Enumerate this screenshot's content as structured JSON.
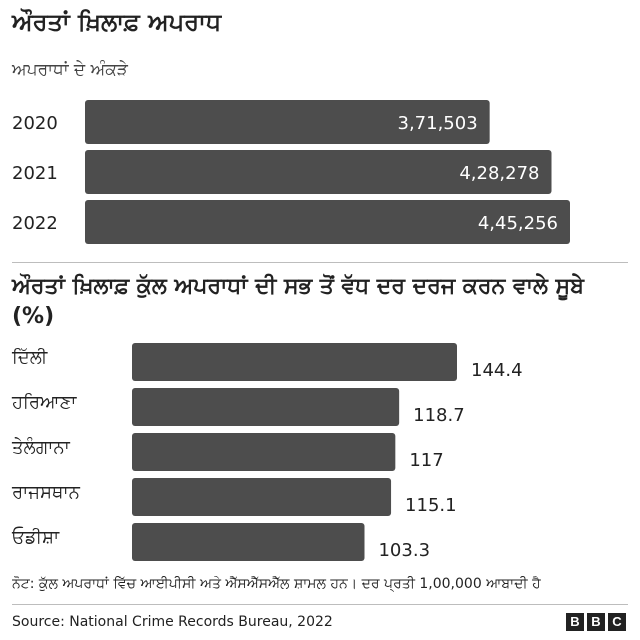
{
  "title": "ਔਰਤਾਂ ਖ਼ਿਲਾਫ਼ ਅਪਰਾਧ",
  "note": "ਨੋਟ: ਕੁੱਲ ਅਪਰਾਧਾਂ ਵਿੱਚ ਆਈਪੀਸੀ ਅਤੇ ਐੱਸਐੱਸਐੱਲ ਸ਼ਾਮਲ ਹਨ। ਦਰ ਪ੍ਰਤੀ 1,00,000 ਆਬਾਦੀ ਹੈ",
  "source": "Source: National Crime Records Bureau, 2022",
  "logo": [
    "B",
    "B",
    "C"
  ],
  "colors": {
    "bar": "#4d4d4d",
    "text": "#222222",
    "value_inside": "#ffffff"
  },
  "chart_data": [
    {
      "type": "bar",
      "orientation": "horizontal",
      "title": "ਅਪਰਾਧਾਂ ਦੇ ਅੰਕੜੇ",
      "categories": [
        "2020",
        "2021",
        "2022"
      ],
      "values": [
        371503,
        428278,
        445256
      ],
      "value_labels": [
        "3,71,503",
        "4,28,278",
        "4,45,256"
      ],
      "value_label_position": "inside-end"
    },
    {
      "type": "bar",
      "orientation": "horizontal",
      "title": "ਔਰਤਾਂ ਖ਼ਿਲਾਫ਼ ਕੁੱਲ ਅਪਰਾਧਾਂ ਦੀ ਸਭ ਤੋਂ ਵੱਧ ਦਰ ਦਰਜ ਕਰਨ ਵਾਲੇ ਸੂਬੇ (%)",
      "categories": [
        "ਦਿੱਲੀ",
        "ਹਰਿਆਣਾ",
        "ਤੇਲੰਗਾਨਾ",
        "ਰਾਜਸਥਾਨ",
        "ਓਡੀਸ਼ਾ"
      ],
      "values": [
        144.4,
        118.7,
        117,
        115.1,
        103.3
      ],
      "value_labels": [
        "144.4",
        "118.7",
        "117",
        "115.1",
        "103.3"
      ],
      "value_label_position": "outside-end"
    }
  ]
}
